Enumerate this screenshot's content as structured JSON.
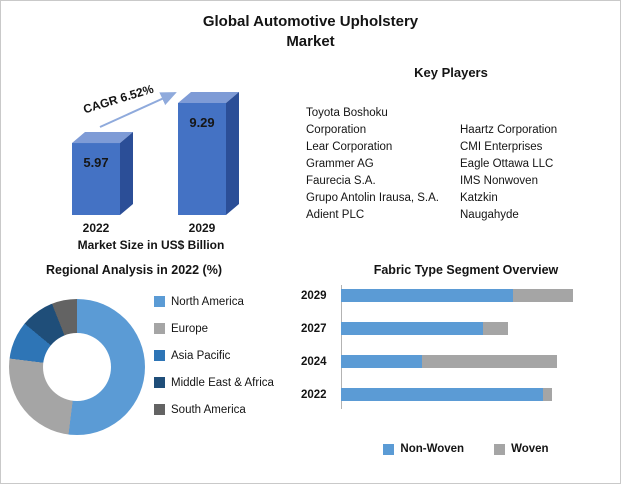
{
  "title": "Global Automotive Upholstery Market",
  "key_players": {
    "heading": "Key Players",
    "column1": [
      "Toyota Boshoku Corporation",
      "Lear Corporation",
      "Grammer AG",
      "Faurecia S.A.",
      "Grupo Antolin Irausa, S.A.",
      "Adient PLC"
    ],
    "column2": [
      "Haartz Corporation",
      "CMI Enterprises",
      "Eagle Ottawa LLC",
      "IMS Nonwoven",
      "Katzkin",
      "Naugahyde"
    ]
  },
  "chart_data": [
    {
      "id": "market-size",
      "type": "bar",
      "categories": [
        "2022",
        "2029"
      ],
      "values": [
        5.97,
        9.29
      ],
      "value_labels": [
        "5.97",
        "9.29"
      ],
      "annotation": "CAGR 6.52%",
      "xlabel": "Market Size in US$ Billion",
      "ylim": [
        0,
        10
      ],
      "bar_color": "#4472C4",
      "bar_top_color": "#7E9BD6",
      "bar_side_color": "#2B4E97",
      "arrow_color": "#8FAADC"
    },
    {
      "id": "regional-analysis",
      "type": "pie",
      "donut": true,
      "title": "Regional Analysis in 2022 (%)",
      "labels": [
        "North America",
        "Europe",
        "Asia Pacific",
        "Middle East & Africa",
        "South America"
      ],
      "values": [
        52,
        25,
        9,
        8,
        6
      ],
      "colors": [
        "#5B9BD5",
        "#A5A5A5",
        "#2E75B6",
        "#1F4E79",
        "#636363"
      ],
      "legend_position": "right"
    },
    {
      "id": "fabric-type-segment",
      "type": "bar",
      "orientation": "horizontal",
      "stacked": true,
      "title": "Fabric Type Segment Overview",
      "categories": [
        "2029",
        "2027",
        "2024",
        "2022"
      ],
      "series": [
        {
          "name": "Non-Woven",
          "color": "#5B9BD5",
          "values": [
            74,
            61,
            35,
            87
          ]
        },
        {
          "name": "Woven",
          "color": "#A5A5A5",
          "values": [
            26,
            11,
            58,
            4
          ]
        }
      ],
      "xlim": [
        0,
        100
      ],
      "legend_position": "bottom"
    }
  ]
}
